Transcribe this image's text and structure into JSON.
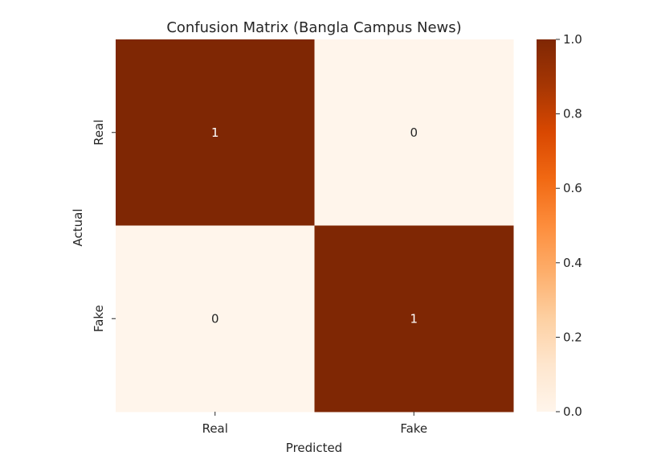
{
  "chart_data": {
    "type": "heatmap",
    "title": "Confusion Matrix (Bangla Campus News)",
    "xlabel": "Predicted",
    "ylabel": "Actual",
    "x_categories": [
      "Real",
      "Fake"
    ],
    "y_categories": [
      "Real",
      "Fake"
    ],
    "values": [
      [
        1,
        0
      ],
      [
        0,
        1
      ]
    ],
    "colormap": "Oranges",
    "vmin": 0.0,
    "vmax": 1.0,
    "colorbar_ticks": [
      "0.0",
      "0.2",
      "0.4",
      "0.6",
      "0.8",
      "1.0"
    ],
    "colors": {
      "low": "#fff5eb",
      "high": "#7f2704",
      "text_on_low": "#262626",
      "text_on_high": "#ffffff"
    }
  }
}
